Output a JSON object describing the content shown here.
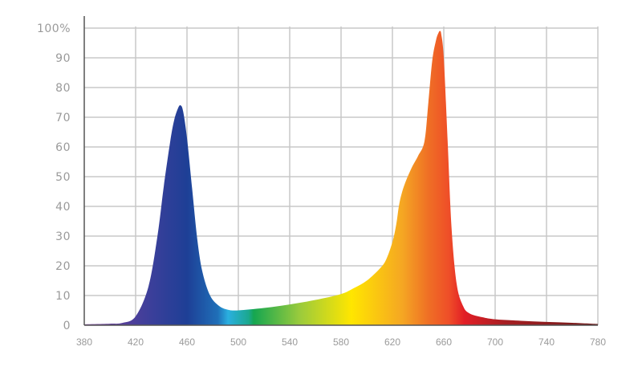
{
  "chart_data": {
    "type": "area",
    "title": "",
    "xlabel": "",
    "ylabel": "",
    "xlim": [
      380,
      780
    ],
    "ylim": [
      0,
      100
    ],
    "grid": true,
    "x_ticks": [
      "380",
      "420",
      "460",
      "500",
      "540",
      "580",
      "620",
      "660",
      "700",
      "740",
      "780"
    ],
    "y_ticks": [
      "0",
      "10",
      "20",
      "30",
      "40",
      "50",
      "60",
      "70",
      "80",
      "90",
      "100%"
    ],
    "series": [
      {
        "x": [
          380,
          400,
          410,
          420,
          430,
          437,
          442,
          447,
          450,
          453,
          455,
          457,
          460,
          464,
          468,
          472,
          478,
          485,
          492,
          500,
          520,
          540,
          560,
          580,
          590,
          600,
          610,
          615,
          620,
          623,
          625,
          627,
          630,
          635,
          640,
          645,
          648,
          651,
          654,
          656,
          657,
          658,
          660,
          663,
          666,
          670,
          675,
          680,
          690,
          700,
          720,
          740,
          760,
          780
        ],
        "y": [
          0.3,
          0.5,
          0.8,
          3,
          13,
          30,
          47,
          62,
          69,
          73,
          74,
          72,
          63,
          46,
          29,
          18,
          10,
          6.5,
          5.2,
          5,
          5.8,
          7,
          8.5,
          10.5,
          12.5,
          15,
          19,
          22,
          28,
          34,
          40,
          44,
          48,
          53,
          57,
          62,
          75,
          89,
          96,
          98.5,
          99,
          98,
          90,
          62,
          33,
          14,
          6.5,
          4,
          2.7,
          2,
          1.5,
          1.1,
          0.8,
          0.4
        ]
      }
    ],
    "colors": {
      "violet": "#7B3F98",
      "deep_blue": "#1E3F96",
      "blue": "#1F6FB8",
      "cyan": "#2AAFE0",
      "green": "#15A650",
      "lime": "#9BCB3C",
      "yellow": "#FFE600",
      "orange": "#F39A1E",
      "red_orange": "#EF5A28",
      "red": "#E21E26",
      "dark_red": "#7A1C1C",
      "grid": "#c8c8c8",
      "axis": "#555555",
      "tick_text": "#9a9a9a"
    }
  }
}
